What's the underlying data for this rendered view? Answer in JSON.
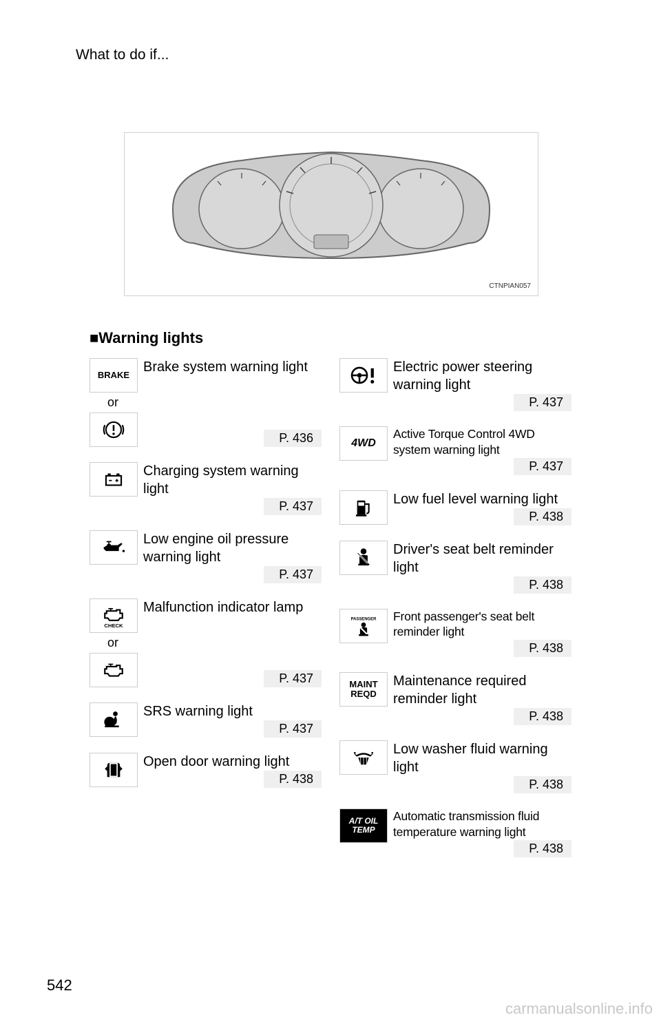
{
  "header": "What to do if...",
  "cluster_image_code": "CTNPIAN057",
  "section_title": "Warning lights",
  "page_number": "542",
  "watermark": "carmanualsonline.info",
  "colors": {
    "border": "#cccccc",
    "ref_bg": "#efefef",
    "text": "#000000",
    "watermark": "#c8c8c8",
    "cluster_border": "#d0d0d0",
    "cluster_fill": "#cccccc"
  },
  "left_items": [
    {
      "icon_text": "BRAKE",
      "desc": "Brake system warning light",
      "condensed": false,
      "page": "P. 436",
      "alt_icon_svg": "exclamation-circle",
      "or": true
    },
    {
      "icon_svg": "battery",
      "desc": "Charging system warning light",
      "condensed": false,
      "page": "P. 437"
    },
    {
      "icon_svg": "oilcan",
      "desc": "Low engine oil pressure warning light",
      "condensed": false,
      "page": "P. 437"
    },
    {
      "icon_svg": "engine-check",
      "desc": "Malfunction indicator lamp",
      "condensed": false,
      "page": "P. 437",
      "alt_icon_svg": "engine",
      "or": true
    },
    {
      "icon_svg": "airbag",
      "desc": "SRS warning light",
      "condensed": false,
      "page": "P. 437"
    },
    {
      "icon_svg": "door",
      "desc": "Open door warning light",
      "condensed": false,
      "page": "P. 438"
    }
  ],
  "right_items": [
    {
      "icon_svg": "steering-exclaim",
      "desc": "Electric power steering warning light",
      "condensed": false,
      "page": "P. 437"
    },
    {
      "icon_text": "4WD",
      "icon_style": "italic-bold",
      "desc": "Active Torque Control 4WD system warning light",
      "condensed": true,
      "page": "P. 437"
    },
    {
      "icon_svg": "fuel",
      "desc": "Low fuel level warning light",
      "condensed": false,
      "page": "P. 438"
    },
    {
      "icon_svg": "seatbelt",
      "desc": "Driver's seat belt reminder light",
      "condensed": false,
      "page": "P. 438"
    },
    {
      "icon_svg": "seatbelt-passenger",
      "desc": "Front passenger's seat belt reminder light",
      "condensed": true,
      "page": "P. 438"
    },
    {
      "icon_text": "MAINT\nREQD",
      "desc": "Maintenance required reminder light",
      "condensed": false,
      "page": "P. 438"
    },
    {
      "icon_svg": "washer",
      "desc": "Low washer fluid warning light",
      "condensed": false,
      "page": "P. 438"
    },
    {
      "icon_text": "A/T OIL\nTEMP",
      "icon_style": "italic-bold-black",
      "desc": "Automatic transmission fluid temperature warning light",
      "condensed": true,
      "page": "P. 438"
    }
  ],
  "or_label": "or"
}
